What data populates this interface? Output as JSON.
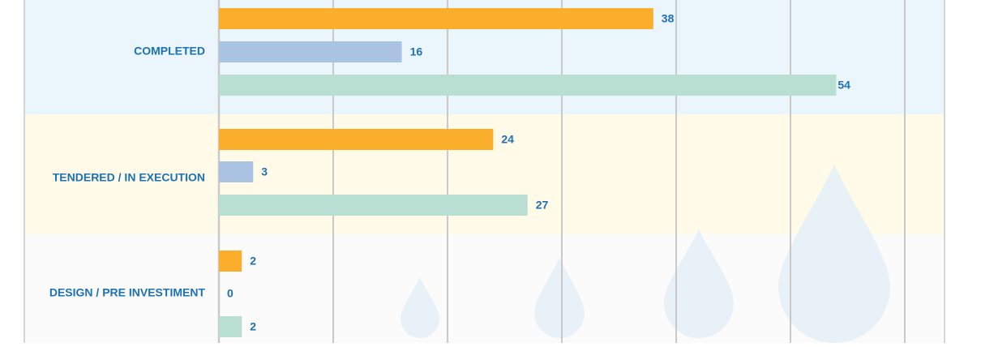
{
  "chart_data": {
    "type": "bar",
    "orientation": "horizontal",
    "categories": [
      "COMPLETED",
      "TENDERED / IN EXECUTION",
      "DESIGN / PRE INVESTIMENT"
    ],
    "series": [
      {
        "values": [
          38,
          24,
          2
        ],
        "color": "#fbae2c"
      },
      {
        "values": [
          16,
          3,
          0
        ],
        "color": "#abc3e3"
      },
      {
        "values": [
          54,
          27,
          2
        ],
        "color": "#b9dfd3"
      }
    ],
    "xlim": [
      0,
      60
    ],
    "grid": true,
    "band_colors": [
      "#eaf5fc",
      "#fffbe8",
      "#fbfbfb"
    ],
    "label_color": "#1c71b4",
    "decoration": "water-drop-icons"
  }
}
